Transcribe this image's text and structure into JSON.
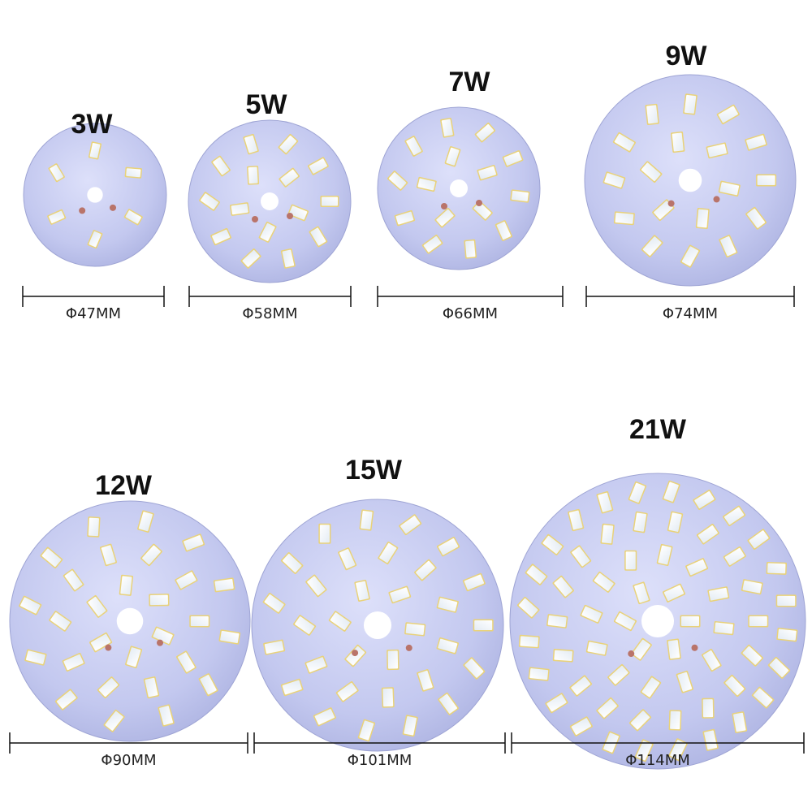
{
  "boards": [
    {
      "power": "3W",
      "diameter": "Φ47MM"
    },
    {
      "power": "5W",
      "diameter": "Φ58MM"
    },
    {
      "power": "7W",
      "diameter": "Φ66MM"
    },
    {
      "power": "9W",
      "diameter": "Φ74MM"
    },
    {
      "power": "12W",
      "diameter": "Φ90MM"
    },
    {
      "power": "15W",
      "diameter": "Φ101MM"
    },
    {
      "power": "21W",
      "diameter": "Φ114MM"
    }
  ]
}
